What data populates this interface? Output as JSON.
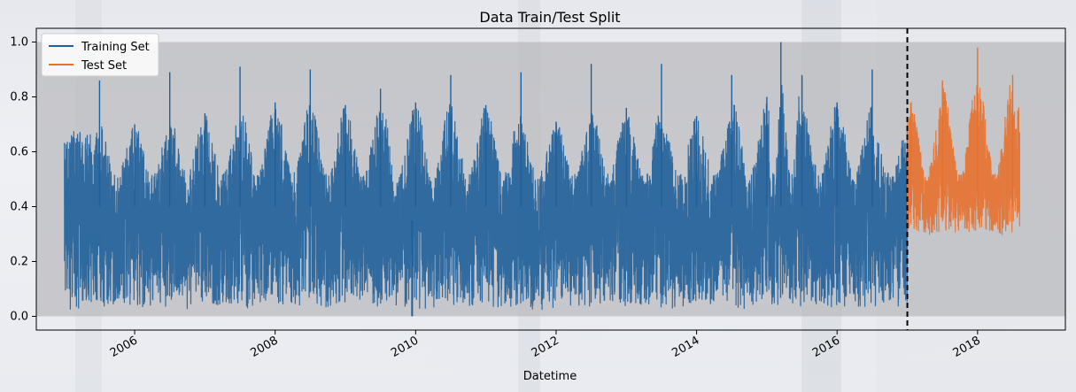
{
  "chart_data": {
    "type": "line",
    "title": "Data Train/Test Split",
    "xlabel": "Datetime",
    "ylabel": "",
    "xlim": [
      2004.6,
      2019.25
    ],
    "ylim": [
      -0.05,
      1.05
    ],
    "x_ticks": [
      2006,
      2008,
      2010,
      2012,
      2014,
      2016,
      2018
    ],
    "y_ticks": [
      "0.0",
      "0.2",
      "0.4",
      "0.6",
      "0.8",
      "1.0"
    ],
    "split_line": 2017.0,
    "legend": {
      "placement": "upper-left"
    },
    "series": [
      {
        "name": "Training Set",
        "color": "#1f5f9a",
        "x_range": [
          2005.0,
          2017.0
        ],
        "baseline": 0.4,
        "min": 0.0,
        "max": 1.0,
        "yearly_peaks": [
          {
            "x": 2005.5,
            "y": 0.86
          },
          {
            "x": 2006.0,
            "y": 0.7
          },
          {
            "x": 2006.5,
            "y": 0.89
          },
          {
            "x": 2007.0,
            "y": 0.74
          },
          {
            "x": 2007.5,
            "y": 0.91
          },
          {
            "x": 2008.0,
            "y": 0.78
          },
          {
            "x": 2008.5,
            "y": 0.9
          },
          {
            "x": 2009.0,
            "y": 0.77
          },
          {
            "x": 2009.5,
            "y": 0.83
          },
          {
            "x": 2010.0,
            "y": 0.78
          },
          {
            "x": 2010.5,
            "y": 0.88
          },
          {
            "x": 2011.0,
            "y": 0.77
          },
          {
            "x": 2011.5,
            "y": 0.89
          },
          {
            "x": 2012.0,
            "y": 0.71
          },
          {
            "x": 2012.5,
            "y": 0.92
          },
          {
            "x": 2013.0,
            "y": 0.76
          },
          {
            "x": 2013.5,
            "y": 0.92
          },
          {
            "x": 2014.0,
            "y": 0.73
          },
          {
            "x": 2014.5,
            "y": 0.88
          },
          {
            "x": 2015.0,
            "y": 0.8
          },
          {
            "x": 2015.2,
            "y": 1.0
          },
          {
            "x": 2015.5,
            "y": 0.88
          },
          {
            "x": 2016.0,
            "y": 0.78
          },
          {
            "x": 2016.5,
            "y": 0.9
          },
          {
            "x": 2017.0,
            "y": 0.68
          }
        ],
        "outlier": {
          "x": 2009.95,
          "y": 0.0
        }
      },
      {
        "name": "Test Set",
        "color": "#e6702d",
        "x_range": [
          2017.0,
          2018.6
        ],
        "baseline": 0.4,
        "min": 0.27,
        "max": 0.98,
        "yearly_peaks": [
          {
            "x": 2017.05,
            "y": 0.78
          },
          {
            "x": 2017.5,
            "y": 0.86
          },
          {
            "x": 2018.0,
            "y": 0.98
          },
          {
            "x": 2018.5,
            "y": 0.88
          }
        ]
      }
    ]
  }
}
